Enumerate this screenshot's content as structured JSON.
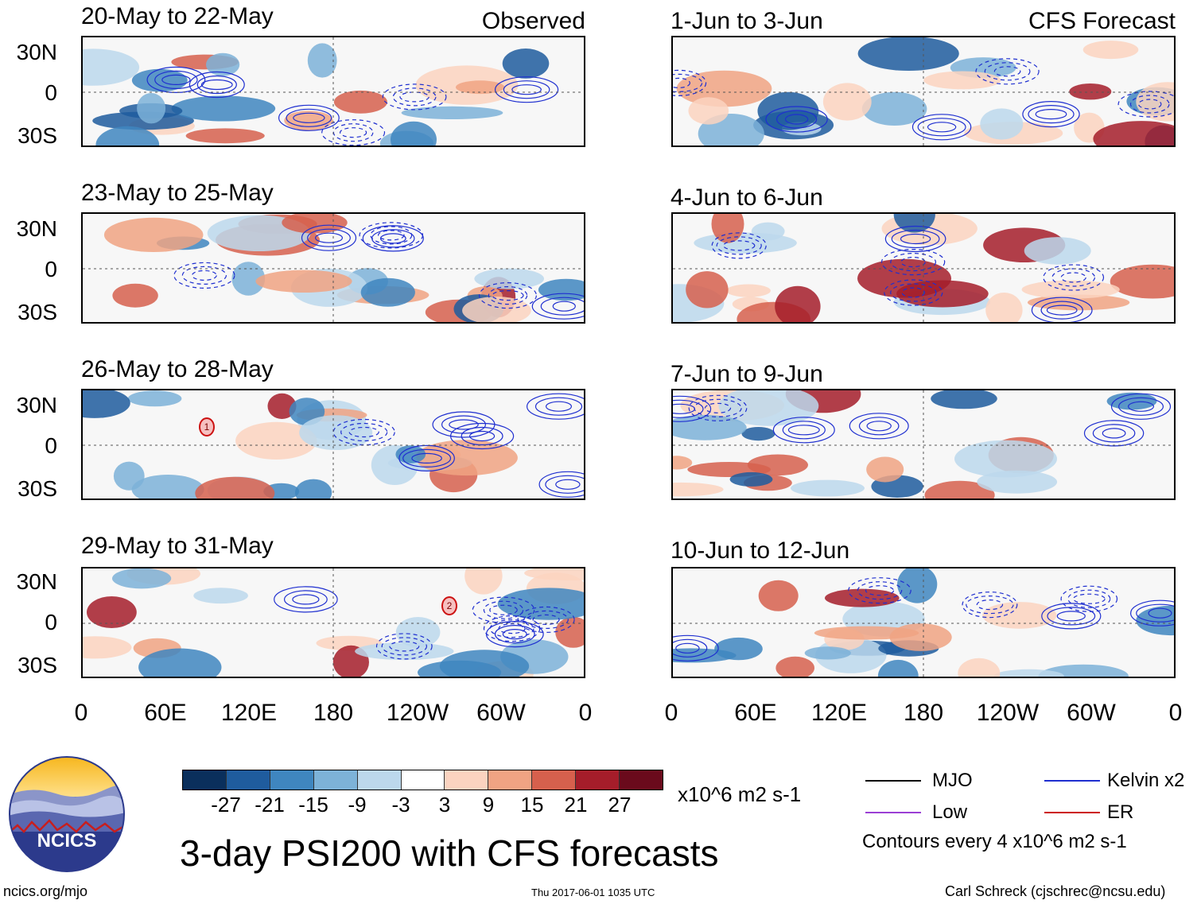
{
  "columns": {
    "left_label": "Observed",
    "right_label": "CFS Forecast"
  },
  "panels_observed": [
    {
      "title": "20-May to 22-May",
      "marker": ""
    },
    {
      "title": "23-May to 25-May",
      "marker": ""
    },
    {
      "title": "26-May to 28-May",
      "marker": "1"
    },
    {
      "title": "29-May to 31-May",
      "marker": "2"
    }
  ],
  "panels_forecast": [
    {
      "title": "1-Jun to 3-Jun"
    },
    {
      "title": "4-Jun to 6-Jun"
    },
    {
      "title": "7-Jun to 9-Jun"
    },
    {
      "title": "10-Jun to 12-Jun"
    }
  ],
  "lat_labels": [
    "30N",
    "0",
    "30S"
  ],
  "lon_labels": [
    "0",
    "60E",
    "120E",
    "180",
    "120W",
    "60W",
    "0"
  ],
  "colorbar": {
    "ticks": [
      "-27",
      "-21",
      "-15",
      "-9",
      "-3",
      "3",
      "9",
      "15",
      "21",
      "27"
    ],
    "colors": [
      "#0a2f5c",
      "#1f5c9e",
      "#3f86bf",
      "#7db2d8",
      "#bcd8ec",
      "#ffffff",
      "#fbd3c0",
      "#f0a383",
      "#d6604d",
      "#a51d2a",
      "#6a0a1c"
    ],
    "units": "x10^6 m2 s-1"
  },
  "legend": {
    "items": [
      {
        "label": "MJO",
        "color": "#000000"
      },
      {
        "label": "Kelvin x2",
        "color": "#1f2fd0"
      },
      {
        "label": "Low",
        "color": "#9b3fd4"
      },
      {
        "label": "ER",
        "color": "#cc1111"
      }
    ],
    "contour_note": "Contours every 4 x10^6 m2 s-1"
  },
  "logo": {
    "text": "NCICS"
  },
  "main_title": "3-day PSI200 with CFS forecasts",
  "footer": {
    "url": "ncics.org/mjo",
    "timestamp": "Thu 2017-06-01 1035 UTC",
    "credit": "Carl Schreck (cjschrec@ncsu.edu)"
  }
}
